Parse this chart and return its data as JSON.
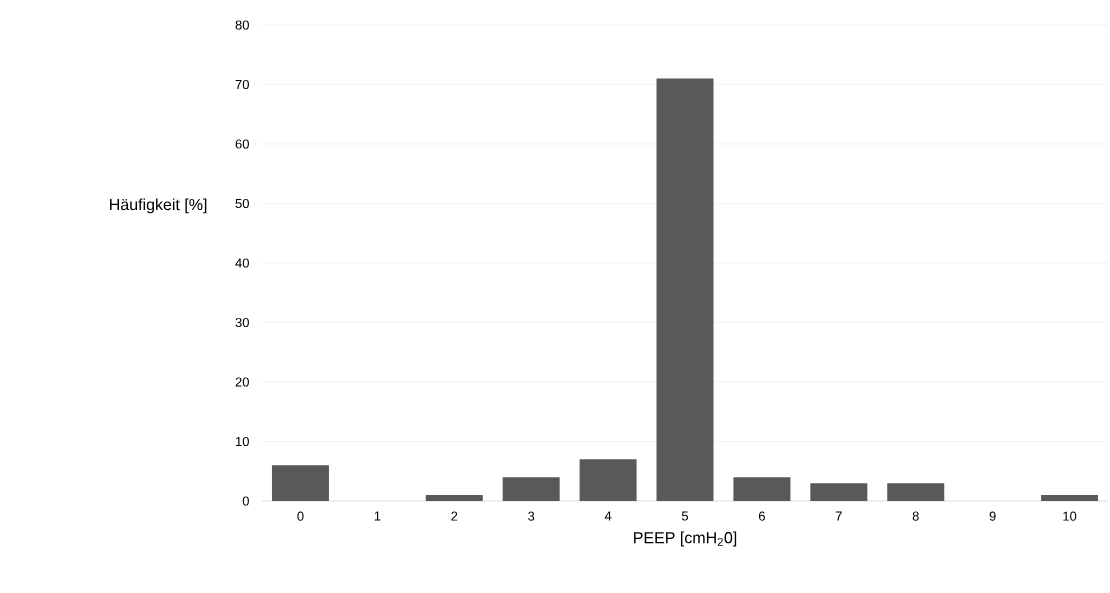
{
  "chart_data": {
    "type": "bar",
    "xlabel": "PEEP [cmH$_{2}$0]",
    "ylabel": "Häufigkeit [%]",
    "categories": [
      "0",
      "1",
      "2",
      "3",
      "4",
      "5",
      "6",
      "7",
      "8",
      "9",
      "10"
    ],
    "values": [
      6,
      0,
      1,
      4,
      7,
      71,
      4,
      3,
      3,
      0,
      1
    ],
    "color": "#595959",
    "ylim": [
      0,
      80
    ],
    "yticks": [
      0,
      10,
      20,
      30,
      40,
      50,
      60,
      70,
      80
    ],
    "grid": "y"
  }
}
